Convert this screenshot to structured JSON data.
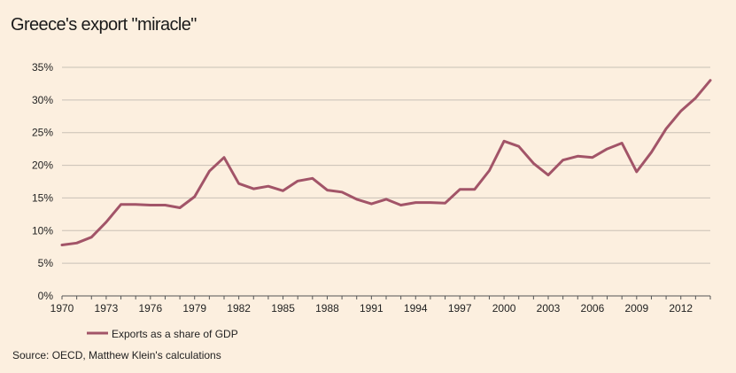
{
  "title": "Greece's export \"miracle\"",
  "source": "Source: OECD, Matthew Klein's calculations",
  "colors": {
    "background": "#fcefdf",
    "line": "#a25468",
    "grid": "#c9c0b6",
    "axis": "#555555"
  },
  "chart_data": {
    "type": "line",
    "title": "Greece's export \"miracle\"",
    "xlabel": "",
    "ylabel": "",
    "xlim": [
      1970,
      2014
    ],
    "ylim": [
      0,
      35
    ],
    "grid": "horizontal",
    "legend": "bottom-left",
    "x_ticks": [
      1970,
      1973,
      1976,
      1979,
      1982,
      1985,
      1988,
      1991,
      1994,
      1997,
      2000,
      2003,
      2006,
      2009,
      2012
    ],
    "y_ticks": [
      0,
      5,
      10,
      15,
      20,
      25,
      30,
      35
    ],
    "y_tick_labels": [
      "0%",
      "5%",
      "10%",
      "15%",
      "20%",
      "25%",
      "30%",
      "35%"
    ],
    "x": [
      1970,
      1971,
      1972,
      1973,
      1974,
      1975,
      1976,
      1977,
      1978,
      1979,
      1980,
      1981,
      1982,
      1983,
      1984,
      1985,
      1986,
      1987,
      1988,
      1989,
      1990,
      1991,
      1992,
      1993,
      1994,
      1995,
      1996,
      1997,
      1998,
      1999,
      2000,
      2001,
      2002,
      2003,
      2004,
      2005,
      2006,
      2007,
      2008,
      2009,
      2010,
      2011,
      2012,
      2013,
      2014
    ],
    "series": [
      {
        "name": "Exports as a share of GDP",
        "values": [
          7.8,
          8.1,
          9.0,
          11.3,
          14.0,
          14.0,
          13.9,
          13.9,
          13.5,
          15.2,
          19.1,
          21.2,
          17.2,
          16.4,
          16.8,
          16.1,
          17.6,
          18.0,
          16.2,
          15.9,
          14.8,
          14.1,
          14.8,
          13.9,
          14.3,
          14.3,
          14.2,
          16.3,
          16.3,
          19.2,
          23.7,
          22.9,
          20.3,
          18.5,
          20.8,
          21.4,
          21.2,
          22.5,
          23.4,
          19.0,
          22.0,
          25.6,
          28.3,
          30.3,
          33.0
        ]
      }
    ]
  }
}
